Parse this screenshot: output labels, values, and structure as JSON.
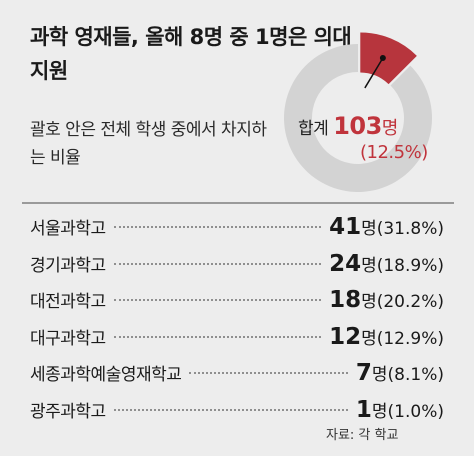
{
  "title": "과학 영재들, 올해 8명 중 1명은 의대 지원",
  "subtitle": "괄호 안은 전체 학생 중에서 차지하는 비율",
  "total": {
    "label": "합계",
    "value": "103",
    "unit": "명",
    "percent": "(12.5%)"
  },
  "chart_data": {
    "type": "pie",
    "subtype": "donut",
    "highlight_fraction": 0.125,
    "colors": {
      "highlight": "#b7353d",
      "rest": "#d3d3d3"
    },
    "rows": [
      {
        "school": "서울과학고",
        "count": "41",
        "unit": "명",
        "percent": "(31.8%)"
      },
      {
        "school": "경기과학고",
        "count": "24",
        "unit": "명",
        "percent": "(18.9%)"
      },
      {
        "school": "대전과학고",
        "count": "18",
        "unit": "명",
        "percent": "(20.2%)"
      },
      {
        "school": "대구과학고",
        "count": "12",
        "unit": "명",
        "percent": "(12.9%)"
      },
      {
        "school": "세종과학예술영재학교",
        "count": "7",
        "unit": "명",
        "percent": "(8.1%)"
      },
      {
        "school": "광주과학고",
        "count": "1",
        "unit": "명",
        "percent": "(1.0%)"
      }
    ]
  },
  "source": "자료: 각 학교"
}
